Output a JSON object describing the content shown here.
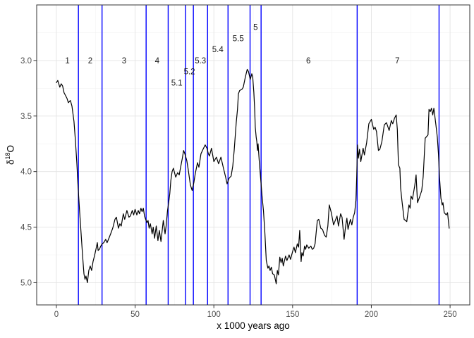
{
  "chart_data": {
    "type": "line",
    "title": "",
    "xlabel": "x 1000 years ago",
    "ylabel": {
      "prefix": "δ",
      "superscript": "18",
      "suffix": "O"
    },
    "x_ticks": [
      0,
      50,
      100,
      150,
      200,
      250
    ],
    "x_minor": [
      25,
      75,
      125,
      175,
      225
    ],
    "y_ticks": [
      "3.0",
      "3.5",
      "4.0",
      "4.5",
      "5.0"
    ],
    "y_minor": [
      2.75,
      3.25,
      3.75,
      4.25,
      4.75
    ],
    "xlim": [
      -12.5,
      262.5
    ],
    "ylim": [
      2.5,
      5.2
    ],
    "y_axis_reversed": true,
    "grid": true,
    "legend": "none",
    "colors": {
      "line": "#000000",
      "boundary_line": "#0000FF",
      "grid_major": "#E4E4E4",
      "grid_minor": "#F2F2F2",
      "panel_border": "#333333",
      "tick_mark": "#333333",
      "tick_label": "#4D4D4D",
      "stage_label": "#1A1A1A"
    },
    "mis_boundaries_kyr": [
      14,
      29,
      57,
      71,
      82,
      87,
      96,
      109,
      123,
      130,
      191,
      243
    ],
    "stage_labels": [
      {
        "text": "1",
        "x": 7,
        "y": 3.0
      },
      {
        "text": "2",
        "x": 21.5,
        "y": 3.0
      },
      {
        "text": "3",
        "x": 43,
        "y": 3.0
      },
      {
        "text": "4",
        "x": 64,
        "y": 3.0
      },
      {
        "text": "5.1",
        "x": 76.5,
        "y": 3.2
      },
      {
        "text": "5.2",
        "x": 84.5,
        "y": 3.1
      },
      {
        "text": "5.3",
        "x": 91.5,
        "y": 3.0
      },
      {
        "text": "5.4",
        "x": 102.5,
        "y": 2.9
      },
      {
        "text": "5.5",
        "x": 115.5,
        "y": 2.8
      },
      {
        "text": "5",
        "x": 126.5,
        "y": 2.7
      },
      {
        "text": "6",
        "x": 160,
        "y": 3.0
      },
      {
        "text": "7",
        "x": 216.5,
        "y": 3.0
      }
    ],
    "series": {
      "points": [
        [
          0,
          3.2
        ],
        [
          0.9,
          3.18
        ],
        [
          2.2,
          3.24
        ],
        [
          3.1,
          3.21
        ],
        [
          4,
          3.23
        ],
        [
          4.9,
          3.29
        ],
        [
          6.7,
          3.34
        ],
        [
          7.6,
          3.38
        ],
        [
          8.9,
          3.36
        ],
        [
          9.9,
          3.41
        ],
        [
          11.2,
          3.55
        ],
        [
          12.1,
          3.72
        ],
        [
          13,
          3.92
        ],
        [
          13.9,
          4.16
        ],
        [
          14.8,
          4.37
        ],
        [
          15.7,
          4.56
        ],
        [
          16.6,
          4.75
        ],
        [
          17.5,
          4.92
        ],
        [
          18.2,
          4.97
        ],
        [
          18.8,
          4.94
        ],
        [
          19.7,
          5.0
        ],
        [
          20.6,
          4.89
        ],
        [
          21.5,
          4.85
        ],
        [
          22.4,
          4.89
        ],
        [
          23.3,
          4.81
        ],
        [
          24.2,
          4.76
        ],
        [
          25.1,
          4.7
        ],
        [
          26,
          4.64
        ],
        [
          26.5,
          4.71
        ],
        [
          27.3,
          4.7
        ],
        [
          28.2,
          4.67
        ],
        [
          29.1,
          4.65
        ],
        [
          30.1,
          4.64
        ],
        [
          31.3,
          4.61
        ],
        [
          32.2,
          4.64
        ],
        [
          33.1,
          4.61
        ],
        [
          34.5,
          4.56
        ],
        [
          35.8,
          4.51
        ],
        [
          37.2,
          4.43
        ],
        [
          38.1,
          4.41
        ],
        [
          39.4,
          4.51
        ],
        [
          40.3,
          4.47
        ],
        [
          41.2,
          4.49
        ],
        [
          42.5,
          4.38
        ],
        [
          43.4,
          4.43
        ],
        [
          44.8,
          4.35
        ],
        [
          46.1,
          4.41
        ],
        [
          47,
          4.4
        ],
        [
          48.2,
          4.35
        ],
        [
          49.1,
          4.39
        ],
        [
          50,
          4.34
        ],
        [
          51.1,
          4.39
        ],
        [
          52,
          4.35
        ],
        [
          52.8,
          4.38
        ],
        [
          53.7,
          4.33
        ],
        [
          54.4,
          4.36
        ],
        [
          55.2,
          4.33
        ],
        [
          56,
          4.4
        ],
        [
          56.7,
          4.43
        ],
        [
          57.5,
          4.46
        ],
        [
          58.2,
          4.44
        ],
        [
          58.9,
          4.51
        ],
        [
          59.7,
          4.47
        ],
        [
          60.8,
          4.56
        ],
        [
          61.5,
          4.5
        ],
        [
          62.4,
          4.6
        ],
        [
          63.4,
          4.49
        ],
        [
          64.5,
          4.62
        ],
        [
          65.4,
          4.53
        ],
        [
          66.4,
          4.63
        ],
        [
          67.9,
          4.44
        ],
        [
          69,
          4.56
        ],
        [
          69.7,
          4.49
        ],
        [
          70.6,
          4.35
        ],
        [
          71.2,
          4.29
        ],
        [
          72,
          4.2
        ],
        [
          72.7,
          4.08
        ],
        [
          73.5,
          4.0
        ],
        [
          74.3,
          3.97
        ],
        [
          75.8,
          4.05
        ],
        [
          77,
          4.01
        ],
        [
          78,
          4.03
        ],
        [
          78.8,
          3.97
        ],
        [
          80,
          3.88
        ],
        [
          80.8,
          3.81
        ],
        [
          81.6,
          3.84
        ],
        [
          82.8,
          3.9
        ],
        [
          83.7,
          3.98
        ],
        [
          85.1,
          4.12
        ],
        [
          86.2,
          4.17
        ],
        [
          87.3,
          4.1
        ],
        [
          88.2,
          4.02
        ],
        [
          89.6,
          3.92
        ],
        [
          90.5,
          3.96
        ],
        [
          91.8,
          3.84
        ],
        [
          93.1,
          3.8
        ],
        [
          94.5,
          3.76
        ],
        [
          95.6,
          3.79
        ],
        [
          96.5,
          3.84
        ],
        [
          97.2,
          3.86
        ],
        [
          98.5,
          3.79
        ],
        [
          100,
          3.91
        ],
        [
          101.6,
          3.87
        ],
        [
          103,
          3.93
        ],
        [
          104.5,
          3.87
        ],
        [
          106.1,
          3.97
        ],
        [
          107.5,
          4.05
        ],
        [
          108.4,
          4.11
        ],
        [
          109.7,
          4.06
        ],
        [
          111,
          4.04
        ],
        [
          112,
          3.95
        ],
        [
          112.9,
          3.81
        ],
        [
          114.2,
          3.56
        ],
        [
          115,
          3.44
        ],
        [
          115.6,
          3.3
        ],
        [
          116.4,
          3.27
        ],
        [
          117.8,
          3.26
        ],
        [
          118.7,
          3.24
        ],
        [
          120,
          3.15
        ],
        [
          121.2,
          3.08
        ],
        [
          122,
          3.1
        ],
        [
          123.1,
          3.17
        ],
        [
          124.1,
          3.12
        ],
        [
          124.7,
          3.15
        ],
        [
          125.4,
          3.29
        ],
        [
          125.9,
          3.43
        ],
        [
          126.3,
          3.6
        ],
        [
          126.9,
          3.69
        ],
        [
          127.3,
          3.73
        ],
        [
          127.7,
          3.81
        ],
        [
          128.1,
          3.75
        ],
        [
          128.8,
          3.9
        ],
        [
          129.9,
          4.09
        ],
        [
          130.6,
          4.22
        ],
        [
          131.5,
          4.35
        ],
        [
          132.4,
          4.55
        ],
        [
          133.3,
          4.8
        ],
        [
          134.3,
          4.87
        ],
        [
          135,
          4.85
        ],
        [
          135.7,
          4.89
        ],
        [
          136.5,
          4.86
        ],
        [
          137.3,
          4.92
        ],
        [
          138.4,
          4.93
        ],
        [
          139.6,
          5.01
        ],
        [
          140.3,
          4.89
        ],
        [
          141,
          4.93
        ],
        [
          141.9,
          4.77
        ],
        [
          142.7,
          4.82
        ],
        [
          143.4,
          4.78
        ],
        [
          144.1,
          4.85
        ],
        [
          145.5,
          4.76
        ],
        [
          146.4,
          4.8
        ],
        [
          147.8,
          4.75
        ],
        [
          148.7,
          4.79
        ],
        [
          150,
          4.72
        ],
        [
          150.9,
          4.68
        ],
        [
          151.8,
          4.73
        ],
        [
          153,
          4.65
        ],
        [
          153.8,
          4.68
        ],
        [
          154.5,
          4.53
        ],
        [
          155.4,
          4.81
        ],
        [
          155.9,
          4.73
        ],
        [
          156.7,
          4.76
        ],
        [
          157.6,
          4.67
        ],
        [
          158.3,
          4.7
        ],
        [
          159,
          4.66
        ],
        [
          160.3,
          4.69
        ],
        [
          161.6,
          4.67
        ],
        [
          162.5,
          4.7
        ],
        [
          163.4,
          4.69
        ],
        [
          164.3,
          4.65
        ],
        [
          165.7,
          4.44
        ],
        [
          166.6,
          4.43
        ],
        [
          167.9,
          4.51
        ],
        [
          169,
          4.52
        ],
        [
          170.2,
          4.57
        ],
        [
          171.3,
          4.59
        ],
        [
          172.4,
          4.49
        ],
        [
          173.3,
          4.3
        ],
        [
          174.6,
          4.37
        ],
        [
          176,
          4.48
        ],
        [
          176.8,
          4.45
        ],
        [
          178.2,
          4.4
        ],
        [
          179.1,
          4.49
        ],
        [
          180.5,
          4.38
        ],
        [
          181.4,
          4.41
        ],
        [
          182.7,
          4.61
        ],
        [
          183.6,
          4.5
        ],
        [
          184.5,
          4.42
        ],
        [
          185.2,
          4.52
        ],
        [
          186,
          4.47
        ],
        [
          186.7,
          4.43
        ],
        [
          187.6,
          4.48
        ],
        [
          188.5,
          4.41
        ],
        [
          189.4,
          4.37
        ],
        [
          190.2,
          4.26
        ],
        [
          190.7,
          4.05
        ],
        [
          191.2,
          3.76
        ],
        [
          191.8,
          3.88
        ],
        [
          192.5,
          3.8
        ],
        [
          193.3,
          3.91
        ],
        [
          194.8,
          3.79
        ],
        [
          195.6,
          3.85
        ],
        [
          197,
          3.74
        ],
        [
          198.4,
          3.57
        ],
        [
          200,
          3.53
        ],
        [
          201.5,
          3.62
        ],
        [
          202.4,
          3.6
        ],
        [
          203.3,
          3.64
        ],
        [
          204.5,
          3.81
        ],
        [
          205.4,
          3.8
        ],
        [
          206.7,
          3.73
        ],
        [
          208.2,
          3.58
        ],
        [
          209.6,
          3.56
        ],
        [
          211.3,
          3.63
        ],
        [
          212.7,
          3.54
        ],
        [
          213.6,
          3.57
        ],
        [
          214.7,
          3.52
        ],
        [
          215.8,
          3.49
        ],
        [
          216.5,
          3.62
        ],
        [
          217.2,
          3.94
        ],
        [
          218.1,
          3.97
        ],
        [
          218.6,
          4.15
        ],
        [
          219.4,
          4.26
        ],
        [
          220.8,
          4.43
        ],
        [
          222.5,
          4.45
        ],
        [
          223.9,
          4.3
        ],
        [
          224.6,
          4.33
        ],
        [
          225.2,
          4.22
        ],
        [
          226.1,
          4.25
        ],
        [
          227.5,
          4.13
        ],
        [
          228.4,
          4.03
        ],
        [
          229.3,
          4.28
        ],
        [
          230.6,
          4.23
        ],
        [
          232,
          4.17
        ],
        [
          232.9,
          4.05
        ],
        [
          234.2,
          3.7
        ],
        [
          236,
          3.67
        ],
        [
          236.6,
          3.44
        ],
        [
          237.4,
          3.46
        ],
        [
          238.2,
          3.43
        ],
        [
          239,
          3.49
        ],
        [
          239.7,
          3.43
        ],
        [
          241,
          3.58
        ],
        [
          241.9,
          3.69
        ],
        [
          242.6,
          3.84
        ],
        [
          243.3,
          4.05
        ],
        [
          244.2,
          4.24
        ],
        [
          245,
          4.3
        ],
        [
          245.5,
          4.28
        ],
        [
          246.3,
          4.37
        ],
        [
          247.6,
          4.39
        ],
        [
          248.4,
          4.37
        ],
        [
          249.4,
          4.51
        ]
      ]
    }
  }
}
